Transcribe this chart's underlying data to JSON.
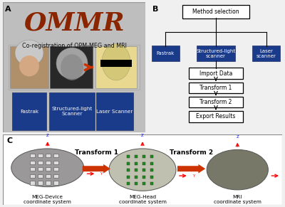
{
  "panel_a_label": "A",
  "panel_b_label": "B",
  "panel_c_label": "C",
  "ommr_text": "OMMR",
  "ommr_color": "#8B2500",
  "subtitle": "Co-registration of OPM-MEG and MRI",
  "method_box": "Method selection",
  "blue_boxes": [
    "Fastrak",
    "Structured-light\nscanner",
    "Laser\nscanner"
  ],
  "flow_boxes": [
    "Import Data",
    "Transform 1",
    "Transform 2",
    "Export Results"
  ],
  "blue_color": "#1A3A8A",
  "blue_text_color": "#FFFFFF",
  "panel_a_labels": [
    "Fastrak",
    "Structured-light\nScanner",
    "Laser Scanner"
  ],
  "panel_c_labels": [
    "Transform 1",
    "Transform 2"
  ],
  "meg_device": "MEG-Device\ncoordinate system",
  "meg_head": "MEG-Head\ncoordinate system",
  "mri": "MRI\ncoordinate system",
  "arrow_color": "#CC3300",
  "panel_a_bg": "#BEBEBE",
  "panel_b_bg": "#F0F0F0",
  "panel_c_bg": "#FFFFFF",
  "fig_bg": "#F0F0F0"
}
